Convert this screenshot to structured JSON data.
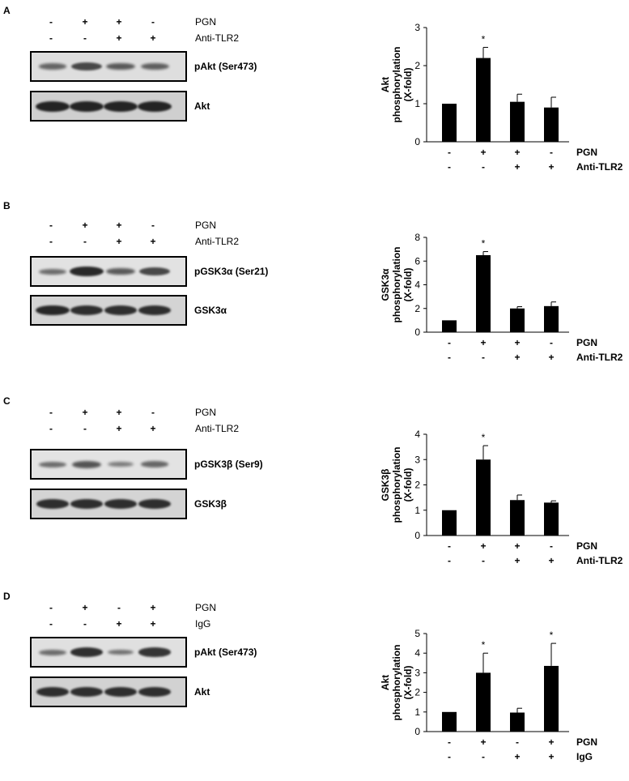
{
  "panels": [
    {
      "label": "A",
      "treatments": [
        {
          "name": "PGN",
          "signs": [
            "-",
            "+",
            "+",
            "-"
          ]
        },
        {
          "name": "Anti-TLR2",
          "signs": [
            "-",
            "-",
            "+",
            "+"
          ]
        }
      ],
      "blots": [
        {
          "name": "pAkt (Ser473)",
          "band_intensity": [
            0.45,
            0.7,
            0.55,
            0.5
          ],
          "background": "#dedede"
        },
        {
          "name": "Akt",
          "band_intensity": [
            1,
            1,
            1,
            1
          ],
          "background": "#cfcfcf"
        }
      ]
    },
    {
      "label": "B",
      "treatments": [
        {
          "name": "PGN",
          "signs": [
            "-",
            "+",
            "+",
            "-"
          ]
        },
        {
          "name": "Anti-TLR2",
          "signs": [
            "-",
            "-",
            "+",
            "+"
          ]
        }
      ],
      "blots": [
        {
          "name": "pGSK3α (Ser21)",
          "band_intensity": [
            0.4,
            0.95,
            0.55,
            0.7
          ],
          "background": "#e2e2e2"
        },
        {
          "name": "GSK3α",
          "band_intensity": [
            0.95,
            0.9,
            0.9,
            0.9
          ],
          "background": "#d4d4d4"
        }
      ]
    },
    {
      "label": "C",
      "treatments": [
        {
          "name": "PGN",
          "signs": [
            "-",
            "+",
            "+",
            "-"
          ]
        },
        {
          "name": "Anti-TLR2",
          "signs": [
            "-",
            "-",
            "+",
            "+"
          ]
        }
      ],
      "blots": [
        {
          "name": "pGSK3β (Ser9)",
          "band_intensity": [
            0.4,
            0.6,
            0.3,
            0.45
          ],
          "background": "#e3e3e3"
        },
        {
          "name": "GSK3β",
          "band_intensity": [
            0.9,
            0.9,
            0.9,
            0.9
          ],
          "background": "#d4d4d4"
        }
      ]
    },
    {
      "label": "D",
      "treatments": [
        {
          "name": "PGN",
          "signs": [
            "-",
            "+",
            "-",
            "+"
          ]
        },
        {
          "name": "IgG",
          "signs": [
            "-",
            "-",
            "+",
            "+"
          ]
        }
      ],
      "blots": [
        {
          "name": "pAkt (Ser473)",
          "band_intensity": [
            0.4,
            0.9,
            0.35,
            0.85
          ],
          "background": "#e0e0e0"
        },
        {
          "name": "Akt",
          "band_intensity": [
            0.9,
            0.9,
            0.9,
            0.9
          ],
          "background": "#d2d2d2"
        }
      ]
    }
  ],
  "chart_data": [
    {
      "type": "bar",
      "ylabel": [
        "Akt",
        "phosphorylation",
        "(X-fold)"
      ],
      "ylim": [
        0,
        3
      ],
      "yticks": [
        0,
        1,
        2,
        3
      ],
      "values": [
        1,
        2.2,
        1.05,
        0.9
      ],
      "errors": [
        0,
        0.28,
        0.2,
        0.27
      ],
      "significance": [
        "",
        "*",
        "",
        ""
      ],
      "xrows": [
        {
          "name": "PGN",
          "signs": [
            "-",
            "+",
            "+",
            "-"
          ]
        },
        {
          "name": "Anti-TLR2",
          "signs": [
            "-",
            "-",
            "+",
            "+"
          ]
        }
      ],
      "bar_color": "#000000"
    },
    {
      "type": "bar",
      "ylabel": [
        "GSK3α",
        "phosphorylation",
        "(X-fold)"
      ],
      "ylim": [
        0,
        8
      ],
      "yticks": [
        0,
        2,
        4,
        6,
        8
      ],
      "values": [
        1,
        6.5,
        2.0,
        2.2
      ],
      "errors": [
        0,
        0.3,
        0.15,
        0.35
      ],
      "significance": [
        "",
        "*",
        "",
        ""
      ],
      "xrows": [
        {
          "name": "PGN",
          "signs": [
            "-",
            "+",
            "+",
            "-"
          ]
        },
        {
          "name": "Anti-TLR2",
          "signs": [
            "-",
            "-",
            "+",
            "+"
          ]
        }
      ],
      "bar_color": "#000000"
    },
    {
      "type": "bar",
      "ylabel": [
        "GSK3β",
        "phosphorylation",
        "(X-fold)"
      ],
      "ylim": [
        0,
        4
      ],
      "yticks": [
        0,
        1,
        2,
        3,
        4
      ],
      "values": [
        1,
        3.0,
        1.4,
        1.3
      ],
      "errors": [
        0,
        0.55,
        0.2,
        0.07
      ],
      "significance": [
        "",
        "*",
        "",
        ""
      ],
      "xrows": [
        {
          "name": "PGN",
          "signs": [
            "-",
            "+",
            "+",
            "-"
          ]
        },
        {
          "name": "Anti-TLR2",
          "signs": [
            "-",
            "-",
            "+",
            "+"
          ]
        }
      ],
      "bar_color": "#000000"
    },
    {
      "type": "bar",
      "ylabel": [
        "Akt",
        "phosphorylation",
        "(X-fold)"
      ],
      "ylim": [
        0,
        5
      ],
      "yticks": [
        0,
        1,
        2,
        3,
        4,
        5
      ],
      "values": [
        1,
        3.0,
        0.97,
        3.35
      ],
      "errors": [
        0,
        1.0,
        0.22,
        1.15
      ],
      "significance": [
        "",
        "*",
        "",
        "*"
      ],
      "xrows": [
        {
          "name": "PGN",
          "signs": [
            "-",
            "+",
            "-",
            "+"
          ]
        },
        {
          "name": "IgG",
          "signs": [
            "-",
            "-",
            "+",
            "+"
          ]
        }
      ],
      "bar_color": "#000000"
    }
  ]
}
